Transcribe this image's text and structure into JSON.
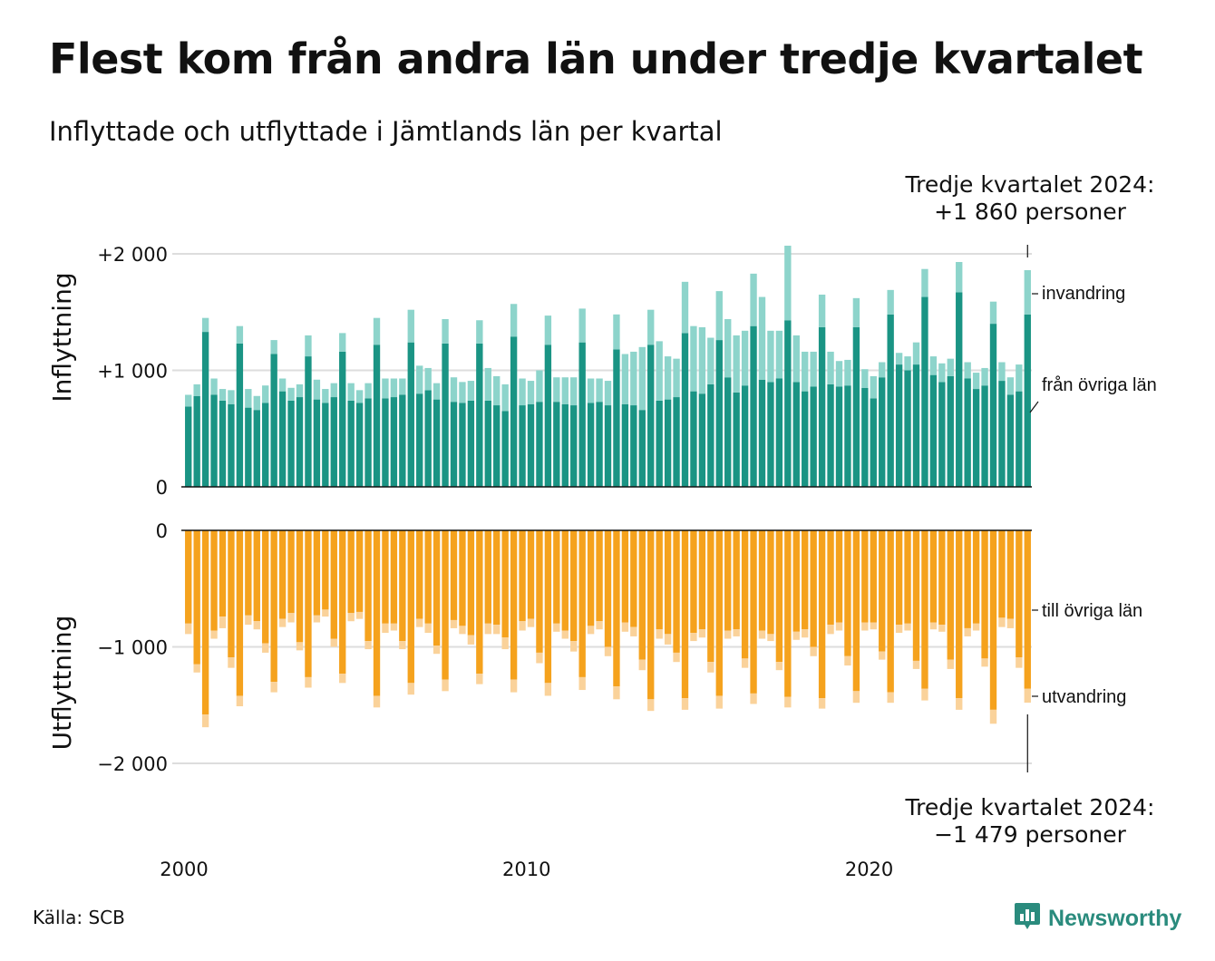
{
  "title": "Flest kom från andra län under tredje kvartalet",
  "subtitle": "Inflyttade och utflyttade i Jämtlands län per kvartal",
  "source": "Källa: SCB",
  "brand": "Newsworthy",
  "colors": {
    "inflow_domestic": "#1a9484",
    "inflow_immigration": "#8dd4cb",
    "outflow_domestic": "#f5a21d",
    "outflow_emigration": "#fad29a"
  },
  "callouts": {
    "top_line1": "Tredje kvartalet 2024:",
    "top_line2": "+1 860 personer",
    "bottom_line1": "Tredje kvartalet 2024:",
    "bottom_line2": "−1 479 personer"
  },
  "chart_data": {
    "type": "bar",
    "x_range": [
      "2000 Q1",
      "2024 Q3"
    ],
    "x_tick_labels": [
      "2000",
      "2010",
      "2020"
    ],
    "panels": [
      {
        "name": "inflow",
        "ylabel": "Inflyttning",
        "ylim": [
          0,
          2000
        ],
        "y_ticks": [
          0,
          1000,
          2000
        ],
        "y_tick_labels": [
          "0",
          "+1 000",
          "+2 000"
        ],
        "series": [
          {
            "name": "från övriga län",
            "values": [
              690,
              780,
              1330,
              790,
              740,
              710,
              1230,
              680,
              660,
              720,
              1140,
              820,
              740,
              770,
              1120,
              750,
              720,
              770,
              1160,
              740,
              720,
              760,
              1220,
              760,
              770,
              790,
              1240,
              800,
              830,
              750,
              1230,
              730,
              720,
              740,
              1230,
              740,
              700,
              650,
              1290,
              700,
              710,
              730,
              1220,
              730,
              710,
              700,
              1240,
              720,
              730,
              700,
              1180,
              710,
              700,
              660,
              1220,
              740,
              750,
              770,
              1320,
              820,
              800,
              880,
              1260,
              940,
              810,
              870,
              1380,
              920,
              900,
              930,
              1430,
              900,
              820,
              860,
              1370,
              880,
              860,
              870,
              1370,
              850,
              760,
              940,
              1480,
              1050,
              1000,
              1050,
              1630,
              960,
              900,
              950,
              1670,
              930,
              840,
              870,
              1400,
              910,
              790,
              820,
              1480
            ]
          },
          {
            "name": "invandring",
            "values": [
              100,
              100,
              120,
              140,
              100,
              120,
              150,
              160,
              120,
              150,
              120,
              110,
              110,
              110,
              180,
              170,
              120,
              120,
              160,
              150,
              110,
              130,
              230,
              170,
              160,
              140,
              280,
              240,
              190,
              140,
              210,
              210,
              180,
              170,
              200,
              280,
              250,
              230,
              280,
              230,
              200,
              270,
              250,
              210,
              230,
              240,
              290,
              210,
              200,
              210,
              300,
              430,
              460,
              540,
              300,
              510,
              370,
              330,
              440,
              560,
              570,
              400,
              420,
              500,
              490,
              470,
              450,
              710,
              440,
              410,
              640,
              400,
              340,
              300,
              280,
              280,
              220,
              220,
              250,
              160,
              190,
              130,
              210,
              100,
              120,
              190,
              240,
              160,
              160,
              150,
              260,
              140,
              140,
              150,
              190,
              160,
              150,
              230,
              380
            ]
          }
        ]
      },
      {
        "name": "outflow",
        "ylabel": "Utflyttning",
        "ylim": [
          -2000,
          0
        ],
        "y_ticks": [
          0,
          -1000,
          -2000
        ],
        "y_tick_labels": [
          "0",
          "−1 000",
          "−2 000"
        ],
        "series": [
          {
            "name": "till övriga län",
            "values": [
              -800,
              -1150,
              -1580,
              -860,
              -740,
              -1090,
              -1420,
              -730,
              -780,
              -970,
              -1300,
              -760,
              -710,
              -960,
              -1260,
              -730,
              -680,
              -930,
              -1230,
              -710,
              -700,
              -950,
              -1420,
              -800,
              -800,
              -950,
              -1310,
              -760,
              -800,
              -990,
              -1280,
              -770,
              -820,
              -900,
              -1230,
              -800,
              -810,
              -920,
              -1280,
              -780,
              -760,
              -1050,
              -1310,
              -800,
              -860,
              -950,
              -1260,
              -820,
              -780,
              -1000,
              -1340,
              -790,
              -830,
              -1110,
              -1450,
              -850,
              -890,
              -1050,
              -1440,
              -880,
              -850,
              -1130,
              -1420,
              -860,
              -850,
              -1100,
              -1400,
              -860,
              -890,
              -1130,
              -1430,
              -870,
              -850,
              -1000,
              -1440,
              -810,
              -790,
              -1080,
              -1380,
              -790,
              -790,
              -1040,
              -1390,
              -810,
              -800,
              -1120,
              -1360,
              -790,
              -810,
              -1110,
              -1440,
              -840,
              -800,
              -1100,
              -1540,
              -750,
              -760,
              -1090,
              -1360
            ]
          },
          {
            "name": "utvandring",
            "values": [
              -90,
              -70,
              -110,
              -70,
              -100,
              -90,
              -90,
              -80,
              -70,
              -80,
              -90,
              -70,
              -80,
              -70,
              -90,
              -60,
              -60,
              -70,
              -80,
              -70,
              -60,
              -70,
              -100,
              -80,
              -60,
              -70,
              -100,
              -70,
              -80,
              -70,
              -100,
              -70,
              -70,
              -80,
              -90,
              -90,
              -80,
              -100,
              -110,
              -80,
              -70,
              -90,
              -110,
              -70,
              -70,
              -90,
              -110,
              -70,
              -70,
              -80,
              -110,
              -80,
              -80,
              -90,
              -100,
              -80,
              -90,
              -80,
              -100,
              -70,
              -70,
              -90,
              -110,
              -70,
              -60,
              -80,
              -90,
              -70,
              -60,
              -70,
              -90,
              -70,
              -70,
              -80,
              -90,
              -80,
              -70,
              -80,
              -100,
              -70,
              -60,
              -70,
              -90,
              -70,
              -60,
              -70,
              -100,
              -60,
              -60,
              -80,
              -100,
              -70,
              -60,
              -70,
              -120,
              -80,
              -80,
              -90,
              -119
            ]
          }
        ]
      }
    ]
  }
}
